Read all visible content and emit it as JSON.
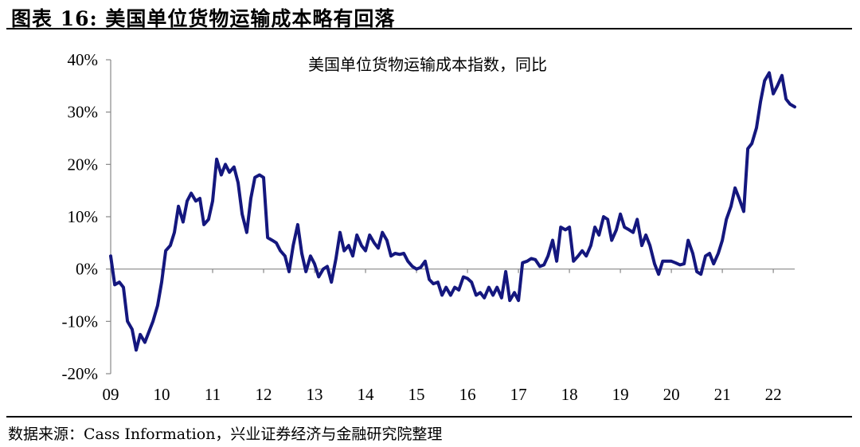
{
  "figure": {
    "title": "图表 16:  美国单位货物运输成本略有回落",
    "source": "数据来源：Cass Information，兴业证券经济与金融研究院整理"
  },
  "chart_data": {
    "type": "line",
    "title": "美国单位货物运输成本指数，同比",
    "xlabel": "",
    "ylabel": "",
    "ylim": [
      -20,
      40
    ],
    "xlim": [
      2009,
      2022.42
    ],
    "y_ticks": [
      -20,
      -10,
      0,
      10,
      20,
      30,
      40
    ],
    "y_tick_labels": [
      "-20%",
      "-10%",
      "0%",
      "10%",
      "20%",
      "30%",
      "40%"
    ],
    "x_ticks": [
      2009,
      2010,
      2011,
      2012,
      2013,
      2014,
      2015,
      2016,
      2017,
      2018,
      2019,
      2020,
      2021,
      2022
    ],
    "x_tick_labels": [
      "09",
      "10",
      "11",
      "12",
      "13",
      "14",
      "15",
      "16",
      "17",
      "18",
      "19",
      "20",
      "21",
      "22"
    ],
    "grid": false,
    "legend": "none",
    "line_color": "#14177e",
    "series": [
      {
        "x": [
          2009.0,
          2009.08,
          2009.17,
          2009.25,
          2009.33,
          2009.42,
          2009.5,
          2009.58,
          2009.67,
          2009.75,
          2009.83,
          2009.92,
          2010.0,
          2010.08,
          2010.17,
          2010.25,
          2010.33,
          2010.42,
          2010.5,
          2010.58,
          2010.67,
          2010.75,
          2010.83,
          2010.92,
          2011.0,
          2011.08,
          2011.17,
          2011.25,
          2011.33,
          2011.42,
          2011.5,
          2011.58,
          2011.67,
          2011.75,
          2011.83,
          2011.92,
          2012.0,
          2012.08,
          2012.17,
          2012.25,
          2012.33,
          2012.42,
          2012.5,
          2012.58,
          2012.67,
          2012.75,
          2012.83,
          2012.92,
          2013.0,
          2013.08,
          2013.17,
          2013.25,
          2013.33,
          2013.42,
          2013.5,
          2013.58,
          2013.67,
          2013.75,
          2013.83,
          2013.92,
          2014.0,
          2014.08,
          2014.17,
          2014.25,
          2014.33,
          2014.42,
          2014.5,
          2014.58,
          2014.67,
          2014.75,
          2014.83,
          2014.92,
          2015.0,
          2015.08,
          2015.17,
          2015.25,
          2015.33,
          2015.42,
          2015.5,
          2015.58,
          2015.67,
          2015.75,
          2015.83,
          2015.92,
          2016.0,
          2016.08,
          2016.17,
          2016.25,
          2016.33,
          2016.42,
          2016.5,
          2016.58,
          2016.67,
          2016.75,
          2016.83,
          2016.92,
          2017.0,
          2017.08,
          2017.17,
          2017.25,
          2017.33,
          2017.42,
          2017.5,
          2017.58,
          2017.67,
          2017.75,
          2017.83,
          2017.92,
          2018.0,
          2018.08,
          2018.17,
          2018.25,
          2018.33,
          2018.42,
          2018.5,
          2018.58,
          2018.67,
          2018.75,
          2018.83,
          2018.92,
          2019.0,
          2019.08,
          2019.17,
          2019.25,
          2019.33,
          2019.42,
          2019.5,
          2019.58,
          2019.67,
          2019.75,
          2019.83,
          2019.92,
          2020.0,
          2020.08,
          2020.17,
          2020.25,
          2020.33,
          2020.42,
          2020.5,
          2020.58,
          2020.67,
          2020.75,
          2020.83,
          2020.92,
          2021.0,
          2021.08,
          2021.17,
          2021.25,
          2021.33,
          2021.42,
          2021.5,
          2021.58,
          2021.67,
          2021.75,
          2021.83,
          2021.92,
          2022.0,
          2022.08,
          2022.17,
          2022.25,
          2022.33,
          2022.42
        ],
        "values": [
          2.5,
          -3.0,
          -2.5,
          -3.5,
          -10.0,
          -11.5,
          -15.5,
          -12.5,
          -14.0,
          -12.0,
          -10.0,
          -7.0,
          -2.5,
          3.5,
          4.5,
          7.0,
          12.0,
          9.0,
          13.0,
          14.5,
          13.0,
          13.5,
          8.5,
          9.5,
          13.0,
          21.0,
          18.0,
          20.0,
          18.5,
          19.5,
          16.5,
          10.5,
          7.0,
          13.5,
          17.5,
          18.0,
          17.5,
          6.0,
          5.5,
          5.0,
          3.5,
          2.5,
          -0.5,
          4.5,
          8.5,
          3.0,
          -0.5,
          2.5,
          1.0,
          -1.5,
          0.0,
          0.5,
          -2.5,
          2.0,
          7.0,
          3.5,
          4.5,
          2.5,
          6.5,
          4.5,
          3.5,
          6.5,
          5.0,
          4.0,
          7.0,
          5.5,
          2.5,
          3.0,
          2.8,
          3.0,
          1.5,
          0.5,
          0.0,
          0.3,
          1.5,
          -2.0,
          -2.8,
          -2.5,
          -5.0,
          -3.5,
          -5.0,
          -3.5,
          -4.0,
          -1.5,
          -1.8,
          -2.5,
          -5.0,
          -4.5,
          -5.5,
          -3.5,
          -5.0,
          -3.5,
          -5.5,
          -0.5,
          -6.0,
          -4.5,
          -6.0,
          1.2,
          1.5,
          2.0,
          1.8,
          0.5,
          0.8,
          2.5,
          5.5,
          1.5,
          8.0,
          7.5,
          8.0,
          1.5,
          2.5,
          3.5,
          2.5,
          4.5,
          8.0,
          6.5,
          10.0,
          9.5,
          5.5,
          7.5,
          10.5,
          8.0,
          7.5,
          7.0,
          9.5,
          4.5,
          6.5,
          4.5,
          1.0,
          -1.0,
          1.5,
          1.5,
          1.5,
          1.2,
          0.8,
          1.0,
          5.5,
          3.0,
          -0.5,
          -1.0,
          2.5,
          3.0,
          1.0,
          3.0,
          5.5,
          9.5,
          12.0,
          15.5,
          13.5,
          11.0,
          23.0,
          24.0,
          27.0,
          32.0,
          36.0,
          37.5,
          33.5,
          35.0,
          37.0,
          32.5,
          31.5,
          31.0
        ]
      }
    ]
  }
}
